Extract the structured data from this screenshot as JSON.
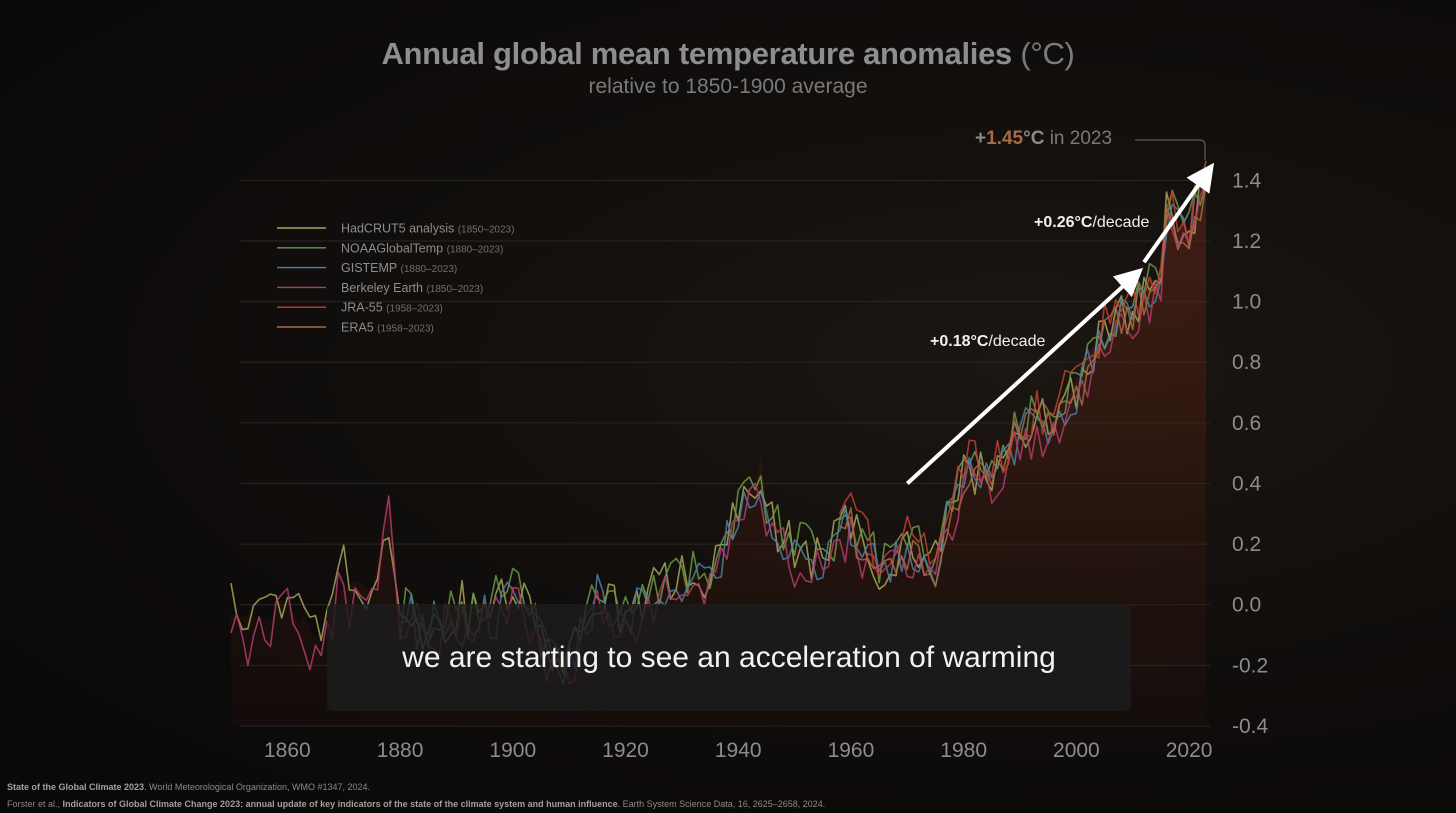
{
  "title": {
    "main": "Annual global mean temperature anomalies",
    "unit": "(°C)"
  },
  "subtitle": "relative to 1850-1900 average",
  "highlight": {
    "plus": "+",
    "value": "1.45",
    "unit": "°C",
    "suffix": " in 2023"
  },
  "caption": "we are starting to see an acceleration of warming",
  "footer": {
    "line1_bold": "State of the Global Climate 2023",
    "line1_rest": ". World Meteorological Organization, WMO #1347, 2024.",
    "line2_start": "Forster et al., ",
    "line2_bold": "Indicators of Global Climate Change 2023: annual update of key indicators of the state of the climate system and human influence",
    "line2_rest": ". Earth System Science Data, 16, 2625–2658, 2024."
  },
  "chart_data": {
    "type": "line",
    "title": "Annual global mean temperature anomalies (°C)",
    "subtitle": "relative to 1850-1900 average",
    "xlabel": "",
    "ylabel": "",
    "xlim": [
      1850,
      2023
    ],
    "ylim": [
      -0.4,
      1.5
    ],
    "xticks": [
      1860,
      1880,
      1900,
      1920,
      1940,
      1960,
      1980,
      2000,
      2020
    ],
    "yticks": [
      -0.4,
      -0.2,
      0.0,
      0.2,
      0.4,
      0.6,
      0.8,
      1.0,
      1.2,
      1.4
    ],
    "ytick_labels": [
      "-0.4",
      "-0.2",
      "0.0",
      "0.2",
      "0.4",
      "0.6",
      "0.8",
      "1.0",
      "1.2",
      "1.4"
    ],
    "y_axis_side": "right",
    "legend_position": "top-left",
    "series": [
      {
        "name": "HadCRUT5 analysis",
        "range": "(1850–2023)",
        "color": "#a6a65a",
        "start": 1850,
        "offset": 0.0
      },
      {
        "name": "NOAAGlobalTemp",
        "range": "(1880–2023)",
        "color": "#6a9a4a",
        "start": 1880,
        "offset": 0.02
      },
      {
        "name": "GISTEMP",
        "range": "(1880–2023)",
        "color": "#4e7fa6",
        "start": 1880,
        "offset": -0.01
      },
      {
        "name": "Berkeley Earth",
        "range": "(1850–2023)",
        "color": "#b03c6a",
        "start": 1850,
        "offset": -0.05
      },
      {
        "name": "JRA-55",
        "range": "(1958–2023)",
        "color": "#c04030",
        "start": 1958,
        "offset": 0.03
      },
      {
        "name": "ERA5",
        "range": "(1958–2023)",
        "color": "#a86a40",
        "start": 1958,
        "offset": -0.02
      }
    ],
    "x": [
      1850,
      1855,
      1860,
      1865,
      1870,
      1875,
      1878,
      1880,
      1885,
      1890,
      1895,
      1900,
      1905,
      1910,
      1915,
      1920,
      1925,
      1930,
      1935,
      1940,
      1944,
      1945,
      1950,
      1955,
      1960,
      1965,
      1970,
      1975,
      1980,
      1985,
      1990,
      1995,
      2000,
      2005,
      2010,
      2015,
      2016,
      2020,
      2023
    ],
    "values": [
      0.0,
      -0.05,
      0.02,
      -0.1,
      0.08,
      0.02,
      0.33,
      -0.05,
      -0.08,
      0.0,
      -0.05,
      0.08,
      -0.12,
      -0.2,
      0.05,
      -0.05,
      0.05,
      0.1,
      0.08,
      0.3,
      0.45,
      0.3,
      0.18,
      0.15,
      0.28,
      0.12,
      0.2,
      0.15,
      0.45,
      0.42,
      0.58,
      0.62,
      0.72,
      0.9,
      0.98,
      1.1,
      1.3,
      1.2,
      1.45
    ],
    "trends": [
      {
        "label_bold": "+0.18°C",
        "label_rest": "/decade",
        "from": [
          1970,
          0.4
        ],
        "to": [
          2010,
          1.08
        ]
      },
      {
        "label_bold": "+0.26°C",
        "label_rest": "/decade",
        "from": [
          2012,
          1.13
        ],
        "to": [
          2023,
          1.42
        ]
      }
    ],
    "annotation": "+1.45°C in 2023"
  }
}
